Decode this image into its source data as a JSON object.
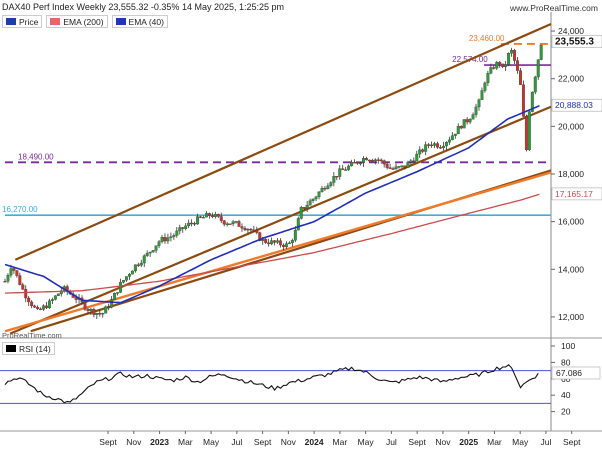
{
  "header": {
    "title": "DAX40 Perf Index Weekly 23,555.32 -0.35% 14 May 2025, 1:25:25 pm",
    "watermark": "www.ProRealTime.com",
    "credit": "ProRealTime.com"
  },
  "legend": [
    {
      "label": "Price",
      "color": "#1a3fa8"
    },
    {
      "label": "EMA (200)",
      "color": "#e06a6a"
    },
    {
      "label": "EMA (40)",
      "color": "#2233bb"
    }
  ],
  "rsi_label": "RSI (14)",
  "chart_data": [
    {
      "type": "candlestick",
      "title": "DAX40 Perf Index Weekly",
      "ylim": [
        11200,
        24800
      ],
      "yticks": [
        "24,000",
        "22,000",
        "20,000",
        "18,000",
        "16,000",
        "14,000",
        "12,000"
      ],
      "ytick_values": [
        24000,
        22000,
        20000,
        18000,
        16000,
        14000,
        12000
      ],
      "xticks": [
        "Sept",
        "Nov",
        "2023",
        "Mar",
        "May",
        "Jul",
        "Sept",
        "Nov",
        "2024",
        "Mar",
        "May",
        "Jul",
        "Sept",
        "Nov",
        "2025",
        "Mar",
        "May",
        "Jul",
        "Sept"
      ],
      "xtick_months": [
        8,
        10,
        12,
        14,
        16,
        18,
        20,
        22,
        24,
        26,
        28,
        30,
        32,
        34,
        36,
        38,
        40,
        42,
        44
      ],
      "last_price": {
        "value": 23555.32,
        "label": "23,555.3"
      },
      "price_path_months": [
        0.0,
        0.5,
        1.5,
        2.5,
        3.5,
        4.5,
        5.5,
        6.5,
        7.5,
        8.2,
        9.0,
        10.0,
        11.0,
        12.0,
        13.0,
        14.0,
        15.0,
        16.0,
        17.0,
        18.0,
        19.0,
        20.0,
        21.0,
        22.0,
        22.5,
        23.0,
        24.0,
        25.0,
        26.0,
        27.0,
        28.0,
        29.0,
        30.0,
        31.0,
        32.0,
        33.0,
        33.8,
        34.5,
        35.5,
        36.0,
        36.8,
        37.3,
        37.9,
        38.4,
        38.7,
        39.0,
        39.3,
        39.7,
        40.1,
        40.45
      ],
      "price_path_values": [
        13500,
        14200,
        13000,
        12200,
        12600,
        13200,
        12800,
        12300,
        12100,
        12600,
        13400,
        14100,
        14600,
        15200,
        15400,
        15800,
        16100,
        16300,
        16000,
        15900,
        15700,
        15200,
        15100,
        15000,
        15500,
        16500,
        17000,
        17600,
        18100,
        18400,
        18700,
        18600,
        18200,
        18300,
        18800,
        19300,
        19200,
        19500,
        20100,
        20300,
        21000,
        22000,
        22500,
        22700,
        22300,
        22900,
        23200,
        22500,
        21500,
        18800
      ],
      "price_path_tail_months": [
        40.45,
        40.75,
        41.05,
        41.35,
        41.65
      ],
      "price_path_tail_values": [
        18800,
        21000,
        21800,
        22700,
        23555
      ],
      "ema200": {
        "label": "17,165.17",
        "value": 17165.17,
        "months": [
          0,
          6,
          12,
          18,
          24,
          30,
          36,
          40,
          41.6
        ],
        "values": [
          13000,
          13100,
          13500,
          14100,
          14700,
          15500,
          16350,
          16900,
          17165
        ]
      },
      "ema40": {
        "label": "20,888.03",
        "value": 20888.03,
        "months": [
          0,
          3,
          6,
          9,
          12,
          16,
          20,
          24,
          28,
          32,
          36,
          39,
          41.6
        ],
        "values": [
          14200,
          13700,
          12700,
          12600,
          13300,
          14400,
          15300,
          16000,
          17200,
          18100,
          19100,
          20300,
          20888
        ]
      },
      "horizontal_levels": [
        {
          "label": "23,460.00",
          "value": 23460,
          "color": "#f07a2a",
          "style": "dashed",
          "start_month": 38.5
        },
        {
          "label": "22,574.00",
          "value": 22574,
          "color": "#7b2a9a",
          "style": "solid",
          "start_month": 37.2
        },
        {
          "label": "18,490.00",
          "value": 18490,
          "color": "#7b2a9a",
          "style": "dashed",
          "start_month": 0
        },
        {
          "label": "16,270.00",
          "value": 16270,
          "color": "#3ab0e0",
          "style": "solid",
          "start_month": 0
        }
      ],
      "channel_lines": [
        {
          "name": "channel-upper",
          "color": "#8a4a10",
          "from": [
            0.8,
            14400
          ],
          "to": [
            44.5,
            24800
          ]
        },
        {
          "name": "channel-middle",
          "color": "#8a4a10",
          "from": [
            0.4,
            11300
          ],
          "to": [
            44.5,
            21300
          ]
        },
        {
          "name": "channel-lower",
          "color": "#8a4a10",
          "from": [
            2,
            11400
          ],
          "to": [
            44.5,
            18500
          ]
        },
        {
          "name": "support-trend",
          "color": "#f07a2a",
          "from": [
            0,
            11400
          ],
          "to": [
            44.5,
            18400
          ]
        }
      ]
    },
    {
      "type": "line",
      "title": "RSI (14)",
      "ylim": [
        0,
        100
      ],
      "yticks": [
        "100",
        "80",
        "60",
        "40",
        "20"
      ],
      "ytick_values": [
        100,
        80,
        60,
        40,
        20
      ],
      "bands": [
        70,
        30
      ],
      "last": {
        "value": 67.086,
        "label": "67.086"
      },
      "months": [
        0,
        1,
        2,
        3,
        4,
        5,
        6,
        7,
        8,
        9,
        10,
        11,
        12,
        13,
        14,
        15,
        16,
        17,
        18,
        19,
        20,
        21,
        22,
        23,
        24,
        25,
        26,
        27,
        28,
        29,
        30,
        31,
        32,
        33,
        34,
        35,
        36,
        37,
        38,
        39,
        39.5,
        40,
        40.5,
        41,
        41.6
      ],
      "values": [
        55,
        62,
        52,
        40,
        36,
        30,
        42,
        55,
        60,
        66,
        62,
        64,
        60,
        58,
        62,
        56,
        63,
        66,
        60,
        56,
        52,
        48,
        55,
        58,
        62,
        65,
        70,
        73,
        68,
        60,
        55,
        58,
        62,
        60,
        56,
        61,
        63,
        66,
        72,
        76,
        70,
        50,
        56,
        62,
        67
      ]
    }
  ]
}
